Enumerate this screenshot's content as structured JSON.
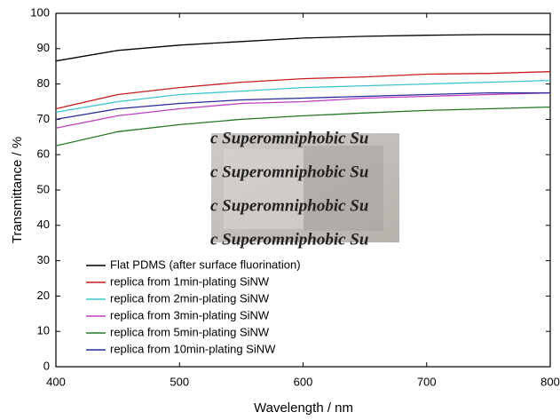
{
  "chart_data": {
    "type": "line",
    "x_label": "Wavelength / nm",
    "y_label": "Transmittance / %",
    "x": [
      400,
      450,
      500,
      550,
      600,
      650,
      700,
      750,
      800
    ],
    "series": [
      {
        "name": "Flat PDMS (after surface fluorination)",
        "color": "#000000",
        "values": [
          86.5,
          89.5,
          91,
          92,
          93,
          93.5,
          93.8,
          94,
          94
        ]
      },
      {
        "name": "replica from 1min-plating SiNW",
        "color": "#c81e1e",
        "values": [
          73,
          77,
          79,
          80.5,
          81.5,
          82,
          82.8,
          83,
          83.5
        ]
      },
      {
        "name": "replica from 2min-plating SiNW",
        "color": "#3cc4d2",
        "values": [
          72,
          75,
          77,
          78,
          79,
          79.5,
          80,
          80.5,
          81
        ]
      },
      {
        "name": "replica from 3min-plating SiNW",
        "color": "#c040c0",
        "values": [
          67.5,
          71,
          73,
          74.5,
          75,
          76,
          76.5,
          77,
          77.5
        ]
      },
      {
        "name": "replica from 5min-plating SiNW",
        "color": "#237a23",
        "values": [
          62.5,
          66.5,
          68.5,
          70,
          71,
          71.8,
          72.5,
          73,
          73.5
        ]
      },
      {
        "name": "replica from 10min-plating SiNW",
        "color": "#2a2a9a",
        "values": [
          70,
          73,
          74.5,
          75.5,
          76,
          76.5,
          77,
          77.5,
          77.5
        ]
      }
    ],
    "xlim": [
      400,
      800
    ],
    "xticks": [
      400,
      500,
      600,
      700,
      800
    ],
    "ylim": [
      0,
      100
    ],
    "yticks": [
      0,
      10,
      20,
      30,
      40,
      50,
      60,
      70,
      80,
      90,
      100
    ],
    "grid": false,
    "legend": "lower-left",
    "annotations": [
      "c Superomniphobic Su",
      "c Superomniphobic Su",
      "c Superomniphobic Su",
      "c Superomniphobic Su"
    ]
  }
}
